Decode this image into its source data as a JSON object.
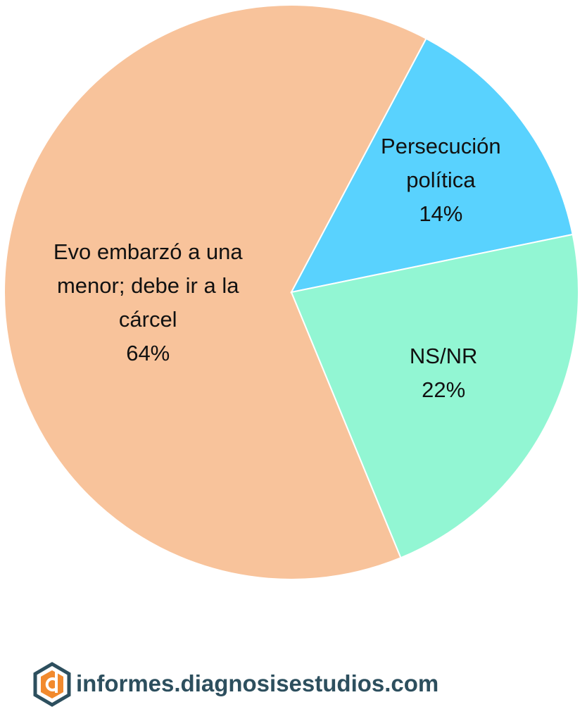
{
  "chart_data": {
    "type": "pie",
    "categories": [
      "Evo embarzó a una menor; debe ir a la cárcel",
      "Persecución política",
      "NS/NR"
    ],
    "values": [
      64,
      14,
      22
    ],
    "value_labels": [
      "64%",
      "14%",
      "22%"
    ],
    "colors": [
      "#f8c39b",
      "#59d2fe",
      "#92f6d3"
    ]
  },
  "footer": {
    "text": "informes.diagnosisestudios.com"
  }
}
